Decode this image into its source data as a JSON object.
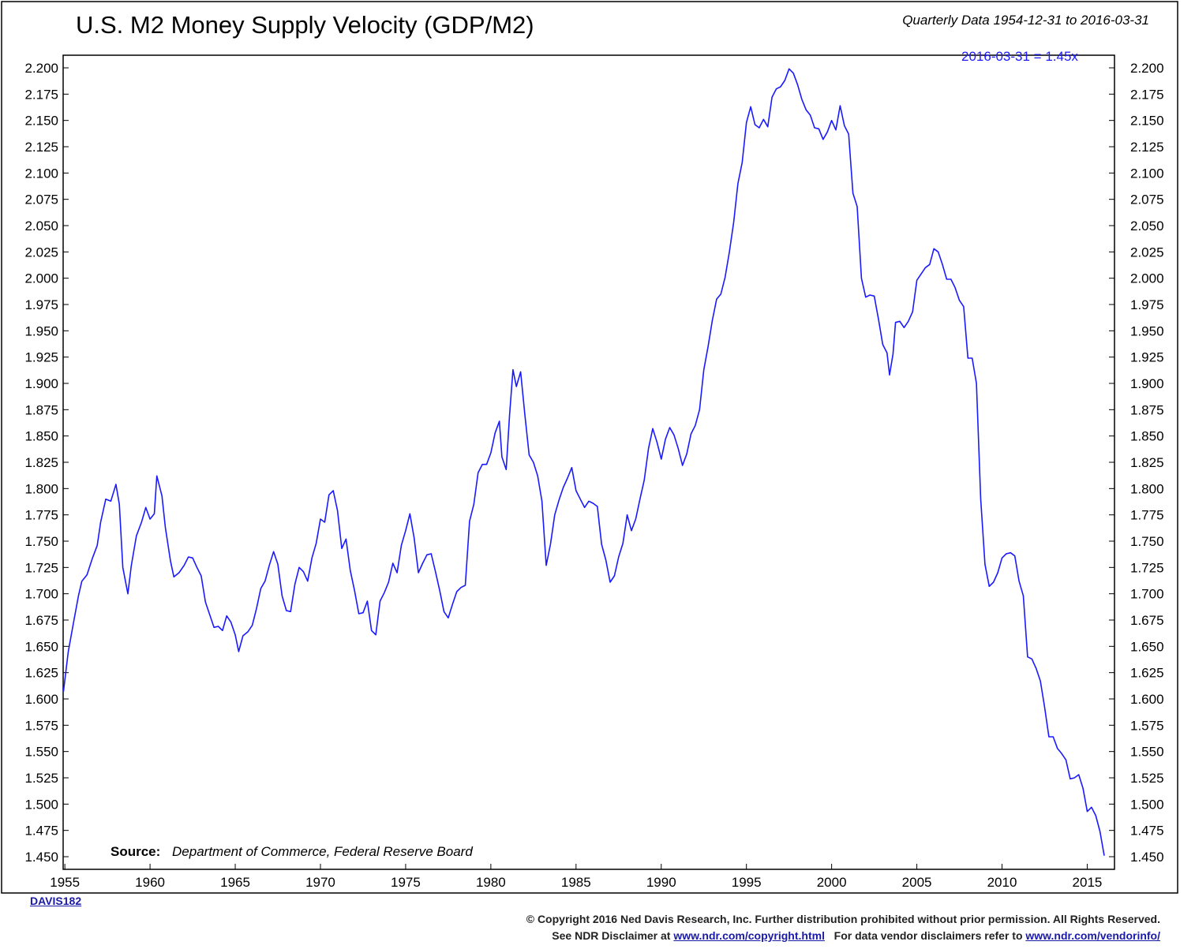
{
  "header": {
    "title": "U.S. M2 Money Supply Velocity (GDP/M2)",
    "subtitle": "Quarterly Data 1954-12-31 to 2016-03-31",
    "latest_value_label": "2016-03-31 = 1.45x"
  },
  "source": {
    "label": "Source:",
    "text": "Department of Commerce, Federal Reserve Board"
  },
  "chart_code": "DAVIS182",
  "footer": {
    "line1": "© Copyright 2016 Ned Davis Research, Inc. Further distribution prohibited without prior permission. All Rights Reserved.",
    "line2_prefix": "See NDR Disclaimer at",
    "line2_link1": "www.ndr.com/copyright.html",
    "line2_middle": "For data vendor disclaimers refer to",
    "line2_link2": "www.ndr.com/vendorinfo/"
  },
  "colors": {
    "line": "#1a1aff",
    "axis": "#000000",
    "link": "#1a1aa8"
  },
  "chart_data": {
    "type": "line",
    "title": "U.S. M2 Money Supply Velocity (GDP/M2)",
    "xlim": [
      1954.9,
      2016.6
    ],
    "ylim": [
      1.45,
      2.2
    ],
    "x_ticks": [
      1955,
      1960,
      1965,
      1970,
      1975,
      1980,
      1985,
      1990,
      1995,
      2000,
      2005,
      2010,
      2015
    ],
    "y_ticks": [
      "1.450",
      "1.475",
      "1.500",
      "1.525",
      "1.550",
      "1.575",
      "1.600",
      "1.625",
      "1.650",
      "1.675",
      "1.700",
      "1.725",
      "1.750",
      "1.775",
      "1.800",
      "1.825",
      "1.850",
      "1.875",
      "1.900",
      "1.925",
      "1.950",
      "1.975",
      "2.000",
      "2.025",
      "2.050",
      "2.075",
      "2.100",
      "2.125",
      "2.150",
      "2.175",
      "2.200"
    ],
    "grid": false,
    "series": [
      {
        "points": [
          [
            1954.92,
            1.607
          ],
          [
            1955.2,
            1.645
          ],
          [
            1955.5,
            1.672
          ],
          [
            1955.8,
            1.698
          ],
          [
            1956.0,
            1.712
          ],
          [
            1956.3,
            1.718
          ],
          [
            1956.6,
            1.733
          ],
          [
            1956.9,
            1.746
          ],
          [
            1957.1,
            1.768
          ],
          [
            1957.4,
            1.79
          ],
          [
            1957.7,
            1.788
          ],
          [
            1958.0,
            1.804
          ],
          [
            1958.2,
            1.785
          ],
          [
            1958.4,
            1.725
          ],
          [
            1958.7,
            1.7
          ],
          [
            1958.9,
            1.727
          ],
          [
            1959.2,
            1.755
          ],
          [
            1959.5,
            1.768
          ],
          [
            1959.75,
            1.782
          ],
          [
            1960.0,
            1.771
          ],
          [
            1960.25,
            1.776
          ],
          [
            1960.4,
            1.812
          ],
          [
            1960.7,
            1.793
          ],
          [
            1960.9,
            1.763
          ],
          [
            1961.2,
            1.731
          ],
          [
            1961.4,
            1.716
          ],
          [
            1961.7,
            1.72
          ],
          [
            1962.0,
            1.727
          ],
          [
            1962.25,
            1.735
          ],
          [
            1962.5,
            1.734
          ],
          [
            1962.75,
            1.725
          ],
          [
            1963.0,
            1.717
          ],
          [
            1963.25,
            1.692
          ],
          [
            1963.5,
            1.68
          ],
          [
            1963.75,
            1.668
          ],
          [
            1964.0,
            1.669
          ],
          [
            1964.25,
            1.665
          ],
          [
            1964.5,
            1.679
          ],
          [
            1964.75,
            1.673
          ],
          [
            1965.0,
            1.661
          ],
          [
            1965.2,
            1.645
          ],
          [
            1965.45,
            1.66
          ],
          [
            1965.75,
            1.664
          ],
          [
            1966.0,
            1.67
          ],
          [
            1966.25,
            1.686
          ],
          [
            1966.5,
            1.705
          ],
          [
            1966.75,
            1.712
          ],
          [
            1967.0,
            1.727
          ],
          [
            1967.25,
            1.74
          ],
          [
            1967.5,
            1.728
          ],
          [
            1967.75,
            1.698
          ],
          [
            1968.0,
            1.684
          ],
          [
            1968.25,
            1.683
          ],
          [
            1968.5,
            1.709
          ],
          [
            1968.75,
            1.725
          ],
          [
            1969.0,
            1.721
          ],
          [
            1969.25,
            1.712
          ],
          [
            1969.5,
            1.734
          ],
          [
            1969.75,
            1.748
          ],
          [
            1970.0,
            1.771
          ],
          [
            1970.25,
            1.768
          ],
          [
            1970.5,
            1.794
          ],
          [
            1970.75,
            1.798
          ],
          [
            1971.0,
            1.779
          ],
          [
            1971.25,
            1.743
          ],
          [
            1971.5,
            1.752
          ],
          [
            1971.75,
            1.722
          ],
          [
            1972.0,
            1.703
          ],
          [
            1972.25,
            1.681
          ],
          [
            1972.5,
            1.682
          ],
          [
            1972.75,
            1.693
          ],
          [
            1973.0,
            1.665
          ],
          [
            1973.25,
            1.661
          ],
          [
            1973.5,
            1.693
          ],
          [
            1973.75,
            1.701
          ],
          [
            1974.0,
            1.711
          ],
          [
            1974.25,
            1.729
          ],
          [
            1974.5,
            1.72
          ],
          [
            1974.75,
            1.746
          ],
          [
            1975.0,
            1.76
          ],
          [
            1975.25,
            1.776
          ],
          [
            1975.5,
            1.753
          ],
          [
            1975.75,
            1.72
          ],
          [
            1976.0,
            1.729
          ],
          [
            1976.25,
            1.737
          ],
          [
            1976.5,
            1.738
          ],
          [
            1976.75,
            1.721
          ],
          [
            1977.0,
            1.703
          ],
          [
            1977.25,
            1.683
          ],
          [
            1977.5,
            1.677
          ],
          [
            1977.75,
            1.69
          ],
          [
            1978.0,
            1.702
          ],
          [
            1978.25,
            1.706
          ],
          [
            1978.5,
            1.708
          ],
          [
            1978.75,
            1.769
          ],
          [
            1979.0,
            1.785
          ],
          [
            1979.25,
            1.815
          ],
          [
            1979.5,
            1.823
          ],
          [
            1979.75,
            1.823
          ],
          [
            1980.0,
            1.834
          ],
          [
            1980.25,
            1.853
          ],
          [
            1980.5,
            1.864
          ],
          [
            1980.65,
            1.83
          ],
          [
            1980.9,
            1.818
          ],
          [
            1981.1,
            1.87
          ],
          [
            1981.3,
            1.913
          ],
          [
            1981.5,
            1.897
          ],
          [
            1981.75,
            1.911
          ],
          [
            1982.0,
            1.87
          ],
          [
            1982.25,
            1.832
          ],
          [
            1982.5,
            1.825
          ],
          [
            1982.75,
            1.812
          ],
          [
            1983.0,
            1.788
          ],
          [
            1983.25,
            1.727
          ],
          [
            1983.5,
            1.747
          ],
          [
            1983.75,
            1.775
          ],
          [
            1984.0,
            1.789
          ],
          [
            1984.25,
            1.801
          ],
          [
            1984.5,
            1.81
          ],
          [
            1984.75,
            1.82
          ],
          [
            1985.0,
            1.798
          ],
          [
            1985.25,
            1.79
          ],
          [
            1985.5,
            1.782
          ],
          [
            1985.75,
            1.788
          ],
          [
            1986.0,
            1.786
          ],
          [
            1986.25,
            1.783
          ],
          [
            1986.5,
            1.747
          ],
          [
            1986.75,
            1.732
          ],
          [
            1987.0,
            1.711
          ],
          [
            1987.25,
            1.717
          ],
          [
            1987.5,
            1.735
          ],
          [
            1987.75,
            1.748
          ],
          [
            1988.0,
            1.775
          ],
          [
            1988.25,
            1.76
          ],
          [
            1988.5,
            1.771
          ],
          [
            1988.75,
            1.79
          ],
          [
            1989.0,
            1.808
          ],
          [
            1989.25,
            1.838
          ],
          [
            1989.5,
            1.857
          ],
          [
            1989.75,
            1.844
          ],
          [
            1990.0,
            1.828
          ],
          [
            1990.25,
            1.847
          ],
          [
            1990.5,
            1.858
          ],
          [
            1990.75,
            1.851
          ],
          [
            1991.0,
            1.838
          ],
          [
            1991.25,
            1.822
          ],
          [
            1991.5,
            1.833
          ],
          [
            1991.75,
            1.852
          ],
          [
            1992.0,
            1.86
          ],
          [
            1992.25,
            1.875
          ],
          [
            1992.5,
            1.913
          ],
          [
            1992.75,
            1.935
          ],
          [
            1993.0,
            1.96
          ],
          [
            1993.25,
            1.98
          ],
          [
            1993.5,
            1.985
          ],
          [
            1993.75,
            2.001
          ],
          [
            1994.0,
            2.025
          ],
          [
            1994.25,
            2.053
          ],
          [
            1994.5,
            2.09
          ],
          [
            1994.75,
            2.11
          ],
          [
            1995.0,
            2.148
          ],
          [
            1995.25,
            2.163
          ],
          [
            1995.5,
            2.146
          ],
          [
            1995.75,
            2.143
          ],
          [
            1996.0,
            2.151
          ],
          [
            1996.25,
            2.144
          ],
          [
            1996.5,
            2.172
          ],
          [
            1996.75,
            2.18
          ],
          [
            1997.0,
            2.182
          ],
          [
            1997.25,
            2.188
          ],
          [
            1997.5,
            2.199
          ],
          [
            1997.75,
            2.195
          ],
          [
            1998.0,
            2.184
          ],
          [
            1998.25,
            2.17
          ],
          [
            1998.5,
            2.16
          ],
          [
            1998.75,
            2.155
          ],
          [
            1999.0,
            2.143
          ],
          [
            1999.25,
            2.142
          ],
          [
            1999.5,
            2.132
          ],
          [
            1999.75,
            2.139
          ],
          [
            2000.0,
            2.15
          ],
          [
            2000.25,
            2.141
          ],
          [
            2000.5,
            2.164
          ],
          [
            2000.75,
            2.145
          ],
          [
            2001.0,
            2.137
          ],
          [
            2001.25,
            2.081
          ],
          [
            2001.5,
            2.068
          ],
          [
            2001.75,
            2.0
          ],
          [
            2002.0,
            1.982
          ],
          [
            2002.25,
            1.984
          ],
          [
            2002.5,
            1.983
          ],
          [
            2002.75,
            1.961
          ],
          [
            2003.0,
            1.937
          ],
          [
            2003.25,
            1.929
          ],
          [
            2003.4,
            1.908
          ],
          [
            2003.6,
            1.928
          ],
          [
            2003.75,
            1.958
          ],
          [
            2004.0,
            1.959
          ],
          [
            2004.25,
            1.953
          ],
          [
            2004.5,
            1.959
          ],
          [
            2004.75,
            1.968
          ],
          [
            2005.0,
            1.998
          ],
          [
            2005.25,
            2.004
          ],
          [
            2005.5,
            2.01
          ],
          [
            2005.75,
            2.013
          ],
          [
            2006.0,
            2.028
          ],
          [
            2006.25,
            2.025
          ],
          [
            2006.5,
            2.013
          ],
          [
            2006.75,
            1.999
          ],
          [
            2007.0,
            1.999
          ],
          [
            2007.25,
            1.991
          ],
          [
            2007.5,
            1.979
          ],
          [
            2007.75,
            1.973
          ],
          [
            2008.0,
            1.924
          ],
          [
            2008.25,
            1.924
          ],
          [
            2008.5,
            1.9
          ],
          [
            2008.75,
            1.79
          ],
          [
            2009.0,
            1.728
          ],
          [
            2009.25,
            1.707
          ],
          [
            2009.5,
            1.711
          ],
          [
            2009.75,
            1.72
          ],
          [
            2010.0,
            1.734
          ],
          [
            2010.25,
            1.738
          ],
          [
            2010.5,
            1.739
          ],
          [
            2010.75,
            1.736
          ],
          [
            2011.0,
            1.712
          ],
          [
            2011.25,
            1.698
          ],
          [
            2011.5,
            1.64
          ],
          [
            2011.75,
            1.638
          ],
          [
            2012.0,
            1.629
          ],
          [
            2012.25,
            1.617
          ],
          [
            2012.5,
            1.592
          ],
          [
            2012.75,
            1.564
          ],
          [
            2013.0,
            1.564
          ],
          [
            2013.25,
            1.553
          ],
          [
            2013.5,
            1.548
          ],
          [
            2013.75,
            1.542
          ],
          [
            2014.0,
            1.524
          ],
          [
            2014.25,
            1.525
          ],
          [
            2014.5,
            1.528
          ],
          [
            2014.75,
            1.515
          ],
          [
            2015.0,
            1.493
          ],
          [
            2015.25,
            1.497
          ],
          [
            2015.5,
            1.489
          ],
          [
            2015.75,
            1.474
          ],
          [
            2016.0,
            1.451
          ]
        ]
      }
    ]
  }
}
